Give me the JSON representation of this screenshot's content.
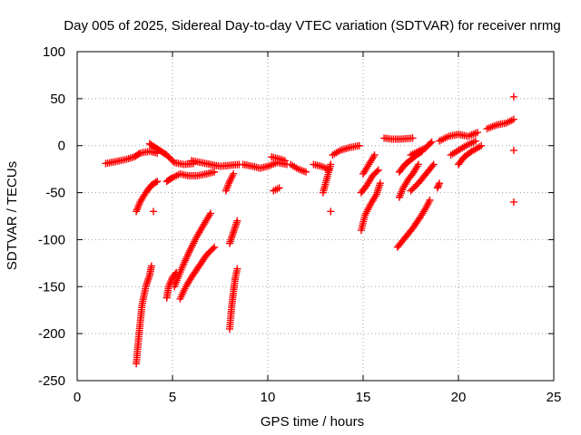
{
  "chart_data": {
    "type": "scatter",
    "title": "Day 005 of 2025, Sidereal Day-to-day VTEC variation (SDTVAR) for receiver nrmg",
    "xlabel": "GPS time / hours",
    "ylabel": "SDTVAR / TECUs",
    "xlim": [
      0,
      25
    ],
    "ylim": [
      -250,
      100
    ],
    "x_ticks": [
      0,
      5,
      10,
      15,
      20,
      25
    ],
    "y_ticks": [
      100,
      50,
      0,
      -50,
      -100,
      -150,
      -200,
      -250
    ],
    "grid": true,
    "marker": "+",
    "color": "#ff0000",
    "series": [
      {
        "name": "SDTVAR",
        "segments": [
          [
            [
              1.5,
              -19
            ],
            [
              2.0,
              -17
            ],
            [
              2.5,
              -15
            ],
            [
              3.0,
              -12
            ],
            [
              3.3,
              -8
            ],
            [
              3.8,
              -6
            ],
            [
              4.2,
              -8
            ]
          ],
          [
            [
              3.8,
              2
            ],
            [
              4.1,
              -2
            ],
            [
              4.4,
              -6
            ],
            [
              4.7,
              -10
            ],
            [
              5.1,
              -18
            ],
            [
              5.6,
              -20
            ],
            [
              6.1,
              -19
            ]
          ],
          [
            [
              6.0,
              -16
            ],
            [
              6.5,
              -18
            ],
            [
              7.0,
              -20
            ],
            [
              7.5,
              -22
            ],
            [
              8.0,
              -21
            ],
            [
              8.5,
              -20
            ]
          ],
          [
            [
              4.7,
              -38
            ],
            [
              5.0,
              -34
            ],
            [
              5.4,
              -30
            ],
            [
              5.8,
              -32
            ],
            [
              6.3,
              -32
            ],
            [
              6.8,
              -30
            ],
            [
              7.2,
              -28
            ]
          ],
          [
            [
              8.7,
              -20
            ],
            [
              9.2,
              -22
            ],
            [
              9.6,
              -24
            ],
            [
              10.0,
              -22
            ],
            [
              10.5,
              -18
            ],
            [
              11.0,
              -20
            ]
          ],
          [
            [
              10.2,
              -12
            ],
            [
              10.6,
              -14
            ],
            [
              10.9,
              -16
            ]
          ],
          [
            [
              11.2,
              -20
            ],
            [
              11.6,
              -25
            ],
            [
              12.0,
              -28
            ]
          ],
          [
            [
              12.4,
              -20
            ],
            [
              12.8,
              -22
            ],
            [
              13.2,
              -25
            ]
          ],
          [
            [
              13.4,
              -10
            ],
            [
              13.8,
              -5
            ],
            [
              14.3,
              -2
            ],
            [
              14.8,
              0
            ]
          ],
          [
            [
              16.1,
              8
            ],
            [
              16.5,
              7
            ],
            [
              17.0,
              7
            ],
            [
              17.6,
              8
            ]
          ],
          [
            [
              17.5,
              -10
            ],
            [
              17.9,
              -6
            ],
            [
              18.3,
              -2
            ],
            [
              18.6,
              4
            ]
          ],
          [
            [
              19.0,
              5
            ],
            [
              19.5,
              10
            ],
            [
              20.0,
              12
            ],
            [
              20.5,
              10
            ],
            [
              21.0,
              14
            ]
          ],
          [
            [
              21.5,
              18
            ],
            [
              22.0,
              22
            ],
            [
              22.5,
              24
            ],
            [
              22.9,
              28
            ]
          ],
          [
            [
              3.1,
              -70
            ],
            [
              3.3,
              -60
            ],
            [
              3.6,
              -50
            ],
            [
              3.9,
              -42
            ],
            [
              4.2,
              -38
            ]
          ],
          [
            [
              3.1,
              -232
            ],
            [
              3.2,
              -210
            ],
            [
              3.3,
              -190
            ],
            [
              3.4,
              -170
            ],
            [
              3.6,
              -150
            ],
            [
              3.8,
              -138
            ],
            [
              3.9,
              -128
            ]
          ],
          [
            [
              4.7,
              -162
            ],
            [
              4.8,
              -150
            ],
            [
              5.0,
              -140
            ],
            [
              5.2,
              -135
            ]
          ],
          [
            [
              5.1,
              -150
            ],
            [
              5.5,
              -130
            ],
            [
              5.9,
              -112
            ],
            [
              6.3,
              -96
            ],
            [
              6.7,
              -82
            ],
            [
              7.0,
              -72
            ]
          ],
          [
            [
              5.4,
              -163
            ],
            [
              5.7,
              -150
            ],
            [
              6.0,
              -140
            ],
            [
              6.4,
              -128
            ],
            [
              6.8,
              -116
            ],
            [
              7.2,
              -108
            ]
          ],
          [
            [
              8.0,
              -195
            ],
            [
              8.1,
              -172
            ],
            [
              8.2,
              -155
            ],
            [
              8.3,
              -140
            ],
            [
              8.4,
              -131
            ]
          ],
          [
            [
              7.8,
              -48
            ],
            [
              8.0,
              -38
            ],
            [
              8.2,
              -30
            ]
          ],
          [
            [
              8.0,
              -104
            ],
            [
              8.2,
              -92
            ],
            [
              8.4,
              -80
            ]
          ],
          [
            [
              10.3,
              -48
            ],
            [
              10.6,
              -45
            ]
          ],
          [
            [
              12.9,
              -50
            ],
            [
              13.1,
              -35
            ],
            [
              13.3,
              -20
            ]
          ],
          [
            [
              14.9,
              -90
            ],
            [
              15.1,
              -74
            ],
            [
              15.4,
              -62
            ],
            [
              15.7,
              -52
            ],
            [
              15.9,
              -40
            ]
          ],
          [
            [
              14.9,
              -50
            ],
            [
              15.2,
              -42
            ],
            [
              15.5,
              -32
            ],
            [
              15.8,
              -26
            ]
          ],
          [
            [
              15.0,
              -30
            ],
            [
              15.3,
              -20
            ],
            [
              15.6,
              -10
            ]
          ],
          [
            [
              16.9,
              -55
            ],
            [
              17.1,
              -45
            ],
            [
              17.4,
              -35
            ],
            [
              17.6,
              -30
            ],
            [
              17.9,
              -20
            ]
          ],
          [
            [
              16.9,
              -28
            ],
            [
              17.2,
              -20
            ],
            [
              17.5,
              -15
            ],
            [
              17.8,
              -10
            ],
            [
              18.1,
              -6
            ]
          ],
          [
            [
              17.5,
              -48
            ],
            [
              17.9,
              -40
            ],
            [
              18.3,
              -30
            ],
            [
              18.7,
              -20
            ]
          ],
          [
            [
              16.8,
              -108
            ],
            [
              17.2,
              -98
            ],
            [
              17.6,
              -88
            ],
            [
              18.0,
              -76
            ],
            [
              18.3,
              -66
            ],
            [
              18.5,
              -58
            ]
          ],
          [
            [
              18.9,
              -45
            ],
            [
              19.0,
              -40
            ]
          ],
          [
            [
              20.0,
              -20
            ],
            [
              20.3,
              -12
            ],
            [
              20.7,
              -6
            ],
            [
              21.2,
              0
            ]
          ],
          [
            [
              19.6,
              -10
            ],
            [
              20.0,
              -5
            ],
            [
              20.4,
              0
            ],
            [
              20.9,
              5
            ]
          ]
        ]
      }
    ],
    "isolated_points": [
      [
        13.3,
        -70
      ],
      [
        22.9,
        52
      ],
      [
        22.9,
        -5
      ],
      [
        22.9,
        -60
      ],
      [
        4.0,
        -70
      ]
    ]
  }
}
